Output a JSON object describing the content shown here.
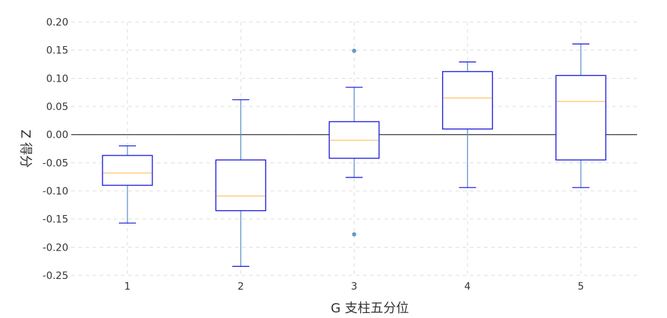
{
  "chart_data": {
    "type": "box",
    "xlabel": "G 支柱五分位",
    "ylabel": "Z 得分",
    "ylim": [
      -0.25,
      0.2
    ],
    "yticks": [
      0.2,
      0.15,
      0.1,
      0.05,
      0.0,
      -0.05,
      -0.1,
      -0.15,
      -0.2,
      -0.25
    ],
    "ytick_labels": [
      "0.20",
      "0.15",
      "0.10",
      "0.05",
      "0.00",
      "-0.05",
      "-0.10",
      "-0.15",
      "-0.20",
      "-0.25"
    ],
    "categories": [
      "1",
      "2",
      "3",
      "4",
      "5"
    ],
    "grid": true,
    "reference_line_y": 0.0,
    "colors": {
      "box": "#2222dd",
      "whisker": "#5588cc",
      "median": "#ffcc77",
      "outlier": "#6699cc",
      "grid": "#dddddd",
      "zero_line": "#222222"
    },
    "boxes": [
      {
        "category": "1",
        "whisker_low": -0.157,
        "q1": -0.09,
        "median": -0.068,
        "q3": -0.037,
        "whisker_high": -0.02,
        "outliers": []
      },
      {
        "category": "2",
        "whisker_low": -0.234,
        "q1": -0.135,
        "median": -0.109,
        "q3": -0.045,
        "whisker_high": 0.062,
        "outliers": []
      },
      {
        "category": "3",
        "whisker_low": -0.076,
        "q1": -0.042,
        "median": -0.01,
        "q3": 0.023,
        "whisker_high": 0.084,
        "outliers": [
          0.149,
          -0.177
        ]
      },
      {
        "category": "4",
        "whisker_low": -0.094,
        "q1": 0.01,
        "median": 0.065,
        "q3": 0.112,
        "whisker_high": 0.129,
        "outliers": []
      },
      {
        "category": "5",
        "whisker_low": -0.094,
        "q1": -0.045,
        "median": 0.059,
        "q3": 0.105,
        "whisker_high": 0.161,
        "outliers": []
      }
    ]
  }
}
